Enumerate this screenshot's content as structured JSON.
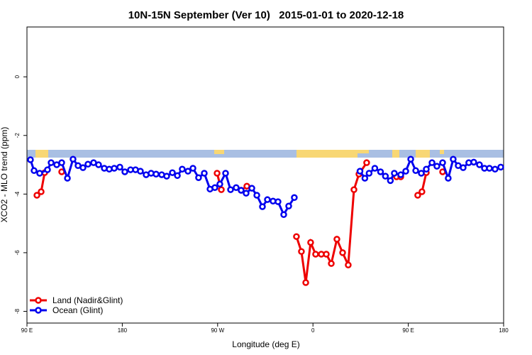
{
  "chart_data": {
    "type": "line",
    "title": "10N-15N September (Ver 10)   2015-01-01 to 2020-12-18",
    "xlabel": "Longitude (deg E)",
    "ylabel": "XCO2 - MLO trend (ppm)",
    "xlim": [
      90,
      540
    ],
    "ylim": [
      -8.4,
      1.7
    ],
    "xticks": [
      {
        "value": 90,
        "label": "90 E"
      },
      180,
      {
        "value": 270,
        "label": "90 W"
      },
      {
        "value": 360,
        "label": "0"
      },
      {
        "value": 450,
        "label": "90 E"
      },
      {
        "value": 540,
        "label": "180"
      }
    ],
    "yticks": [
      0,
      -2,
      -4,
      -6,
      -8
    ],
    "legend": "bottom-left",
    "series": [
      {
        "name": "Land (Nadir&Glint)",
        "color": "#ee0000",
        "x": [
          99.4,
          103.4,
          106.7,
          null,
          122.8,
          null,
          269.5,
          273.5,
          null,
          292.2,
          297.6,
          null,
          344.4,
          349.1,
          353.2,
          357.8,
          362.5,
          367.9,
          372.6,
          377.3,
          382.6,
          388.0,
          393.3,
          398.7,
          403.4,
          410.7,
          null,
          438.9,
          442.9,
          null,
          458.9,
          462.9,
          467.0,
          null,
          482.4
        ],
        "values": [
          -4.04,
          -3.92,
          -3.27,
          null,
          -3.24,
          null,
          -3.29,
          -3.85,
          null,
          -3.87,
          -3.73,
          null,
          -5.45,
          -5.96,
          -7.02,
          -5.65,
          -6.05,
          -6.05,
          -6.05,
          -6.37,
          -5.54,
          -6.0,
          -6.42,
          -3.85,
          -3.32,
          -2.93,
          null,
          -3.41,
          -3.41,
          null,
          -4.04,
          -3.92,
          -3.27,
          null,
          -3.24
        ]
      },
      {
        "name": "Ocean (Glint)",
        "color": "#0000ee",
        "x": [
          93.3,
          96.7,
          102.0,
          109.4,
          112.8,
          118.1,
          122.8,
          128.2,
          133.5,
          138.2,
          142.9,
          147.6,
          152.9,
          157.6,
          163.0,
          167.7,
          172.4,
          177.7,
          182.4,
          187.8,
          192.5,
          197.1,
          202.5,
          207.2,
          211.9,
          217.2,
          221.9,
          227.3,
          232.0,
          236.6,
          242.0,
          246.7,
          252.0,
          257.4,
          262.8,
          267.4,
          272.1,
          277.5,
          282.2,
          287.5,
          292.2,
          296.9,
          302.3,
          307.0,
          312.3,
          317.0,
          322.3,
          327.0,
          332.4,
          337.1,
          342.4,
          null,
          404.4,
          409.0,
          413.0,
          418.4,
          423.8,
          428.4,
          433.1,
          436.8,
          442.9,
          447.6,
          452.3,
          457.0,
          462.3,
          467.0,
          472.4,
          477.0,
          482.4,
          487.7,
          492.4,
          497.1,
          501.8,
          507.1,
          511.8,
          517.2,
          521.9,
          526.6,
          531.9,
          537.3
        ],
        "values": [
          -2.83,
          -3.2,
          -3.29,
          -3.17,
          -2.93,
          -3.0,
          -2.93,
          -3.46,
          -2.81,
          -3.03,
          -3.1,
          -2.98,
          -2.93,
          -3.0,
          -3.12,
          -3.15,
          -3.12,
          -3.08,
          -3.24,
          -3.17,
          -3.17,
          -3.22,
          -3.34,
          -3.29,
          -3.32,
          -3.34,
          -3.39,
          -3.27,
          -3.37,
          -3.15,
          -3.22,
          -3.12,
          -3.44,
          -3.29,
          -3.83,
          -3.78,
          -3.66,
          -3.29,
          -3.85,
          -3.78,
          -3.87,
          -3.97,
          -3.8,
          -4.04,
          -4.43,
          -4.19,
          -4.24,
          -4.26,
          -4.7,
          -4.41,
          -4.12,
          null,
          -3.22,
          -3.46,
          -3.29,
          -3.12,
          -3.24,
          -3.39,
          -3.54,
          -3.29,
          -3.34,
          -3.22,
          -2.81,
          -3.2,
          -3.29,
          -3.15,
          -2.93,
          -3.05,
          -2.93,
          -3.46,
          -2.81,
          -3.03,
          -3.1,
          -2.93,
          -2.91,
          -3.0,
          -3.12,
          -3.12,
          -3.15,
          -3.08
        ]
      }
    ]
  }
}
